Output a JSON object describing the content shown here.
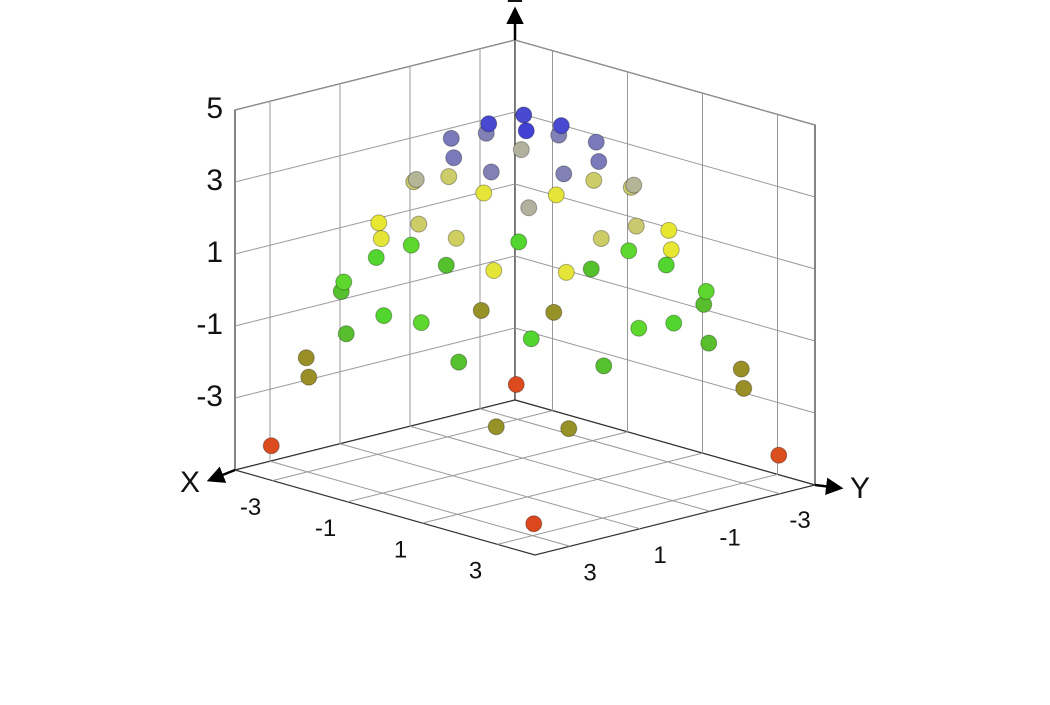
{
  "chart_data": {
    "type": "scatter3d",
    "xlabel": "X",
    "ylabel": "Y",
    "zlabel": "Z",
    "x": [
      -3.5,
      -3.5,
      -3.5,
      -3.5,
      -3.5,
      -3.5,
      -3.5,
      -3.5,
      -2.5,
      -2.5,
      -2.5,
      -2.5,
      -2.5,
      -2.5,
      -2.5,
      -2.5,
      -1.5,
      -1.5,
      -1.5,
      -1.5,
      -1.5,
      -1.5,
      -1.5,
      -1.5,
      -0.5,
      -0.5,
      -0.5,
      -0.5,
      -0.5,
      -0.5,
      -0.5,
      -0.5,
      0.5,
      0.5,
      0.5,
      0.5,
      0.5,
      0.5,
      0.5,
      0.5,
      1.5,
      1.5,
      1.5,
      1.5,
      1.5,
      1.5,
      1.5,
      1.5,
      2.5,
      2.5,
      2.5,
      2.5,
      2.5,
      2.5,
      2.5,
      2.5,
      3.5,
      3.5,
      3.5,
      3.5,
      3.5,
      3.5,
      3.5,
      3.5
    ],
    "y": [
      -3.5,
      -2.5,
      -1.5,
      -0.5,
      0.5,
      1.5,
      2.5,
      3.5,
      -3.5,
      -2.5,
      -1.5,
      -0.5,
      0.5,
      1.5,
      2.5,
      3.5,
      -3.5,
      -2.5,
      -1.5,
      -0.5,
      0.5,
      1.5,
      2.5,
      3.5,
      -3.5,
      -2.5,
      -1.5,
      -0.5,
      0.5,
      1.5,
      2.5,
      3.5,
      -3.5,
      -2.5,
      -1.5,
      -0.5,
      0.5,
      1.5,
      2.5,
      3.5,
      -3.5,
      -2.5,
      -1.5,
      -0.5,
      0.5,
      1.5,
      2.5,
      3.5,
      -3.5,
      -2.5,
      -1.5,
      -0.5,
      0.5,
      1.5,
      2.5,
      3.5,
      -3.5,
      -2.5,
      -1.5,
      -0.5,
      0.5,
      1.5,
      2.5,
      3.5
    ],
    "z": [
      -4.3,
      -2.0,
      -0.5,
      0.3,
      0.2,
      -0.5,
      -2.1,
      -4.3,
      -2.0,
      0.2,
      1.8,
      2.5,
      2.6,
      1.7,
      0.3,
      -2.1,
      -0.5,
      1.8,
      3.3,
      4.0,
      4.1,
      3.2,
      1.8,
      -0.6,
      0.3,
      2.5,
      4.0,
      4.8,
      4.8,
      4.1,
      2.5,
      0.2,
      0.2,
      2.6,
      4.1,
      4.8,
      4.9,
      4.0,
      2.4,
      0.3,
      -0.6,
      1.7,
      3.2,
      4.1,
      4.0,
      3.3,
      1.8,
      -0.5,
      -2.1,
      0.3,
      1.7,
      2.6,
      2.5,
      1.8,
      0.2,
      -2.0,
      -4.2,
      -2.1,
      -0.6,
      0.2,
      0.3,
      -0.5,
      -2.0,
      -4.4
    ],
    "xlim": [
      -4,
      4
    ],
    "ylim": [
      -4,
      4
    ],
    "zlim": [
      -5,
      5
    ],
    "xticks": [
      -3,
      -1,
      1,
      3
    ],
    "yticks": [
      -3,
      -1,
      1,
      3
    ],
    "zticks": [
      -3,
      -1,
      1,
      3,
      5
    ],
    "grid": true,
    "colormap": [
      "#e8301e",
      "#c8701e",
      "#8a9a2a",
      "#3ed22e",
      "#e8e830",
      "#b0b0a0",
      "#3a3ad8"
    ]
  }
}
